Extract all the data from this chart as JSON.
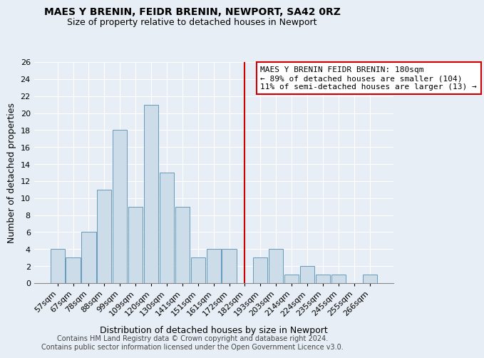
{
  "title1": "MAES Y BRENIN, FEIDR BRENIN, NEWPORT, SA42 0RZ",
  "title2": "Size of property relative to detached houses in Newport",
  "xlabel": "Distribution of detached houses by size in Newport",
  "ylabel": "Number of detached properties",
  "bar_labels": [
    "57sqm",
    "67sqm",
    "78sqm",
    "88sqm",
    "99sqm",
    "109sqm",
    "120sqm",
    "130sqm",
    "141sqm",
    "151sqm",
    "161sqm",
    "172sqm",
    "182sqm",
    "193sqm",
    "203sqm",
    "214sqm",
    "224sqm",
    "235sqm",
    "245sqm",
    "255sqm",
    "266sqm"
  ],
  "bar_values": [
    4,
    3,
    6,
    11,
    18,
    9,
    21,
    13,
    9,
    3,
    4,
    4,
    0,
    3,
    4,
    1,
    2,
    1,
    1,
    0,
    1
  ],
  "bar_color": "#ccdce8",
  "bar_edgecolor": "#6699bb",
  "background_color": "#e8eef5",
  "plot_bg_color": "#e8eef5",
  "grid_color": "#ffffff",
  "vline_x": 12,
  "vline_color": "#cc0000",
  "annotation_line1": "MAES Y BRENIN FEIDR BRENIN: 180sqm",
  "annotation_line2": "← 89% of detached houses are smaller (104)",
  "annotation_line3": "11% of semi-detached houses are larger (13) →",
  "annotation_box_edgecolor": "#cc0000",
  "ylim": [
    0,
    26
  ],
  "yticks": [
    0,
    2,
    4,
    6,
    8,
    10,
    12,
    14,
    16,
    18,
    20,
    22,
    24,
    26
  ],
  "footer1": "Contains HM Land Registry data © Crown copyright and database right 2024.",
  "footer2": "Contains public sector information licensed under the Open Government Licence v3.0.",
  "title1_fontsize": 10,
  "title2_fontsize": 9,
  "axis_label_fontsize": 9,
  "tick_fontsize": 8,
  "annotation_fontsize": 8,
  "footer_fontsize": 7
}
